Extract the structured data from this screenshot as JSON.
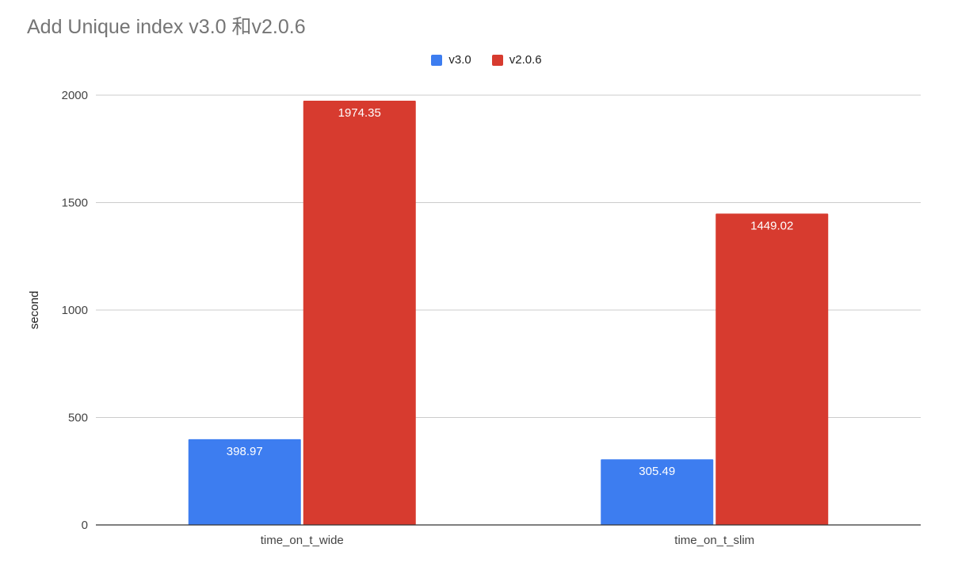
{
  "chart_data": {
    "type": "bar",
    "title": "Add Unique index v3.0 和v2.0.6",
    "xlabel": "",
    "ylabel": "second",
    "ylim": [
      0,
      2000
    ],
    "yticks": [
      0,
      500,
      1000,
      1500,
      2000
    ],
    "grid": true,
    "legend_position": "top",
    "categories": [
      "time_on_t_wide",
      "time_on_t_slim"
    ],
    "series": [
      {
        "name": "v3.0",
        "color": "#3d7df0",
        "values": [
          398.97,
          305.49
        ],
        "labels": [
          "398.97",
          "305.49"
        ]
      },
      {
        "name": "v2.0.6",
        "color": "#d73b2f",
        "values": [
          1974.35,
          1449.02
        ],
        "labels": [
          "1974.35",
          "1449.02"
        ]
      }
    ]
  }
}
